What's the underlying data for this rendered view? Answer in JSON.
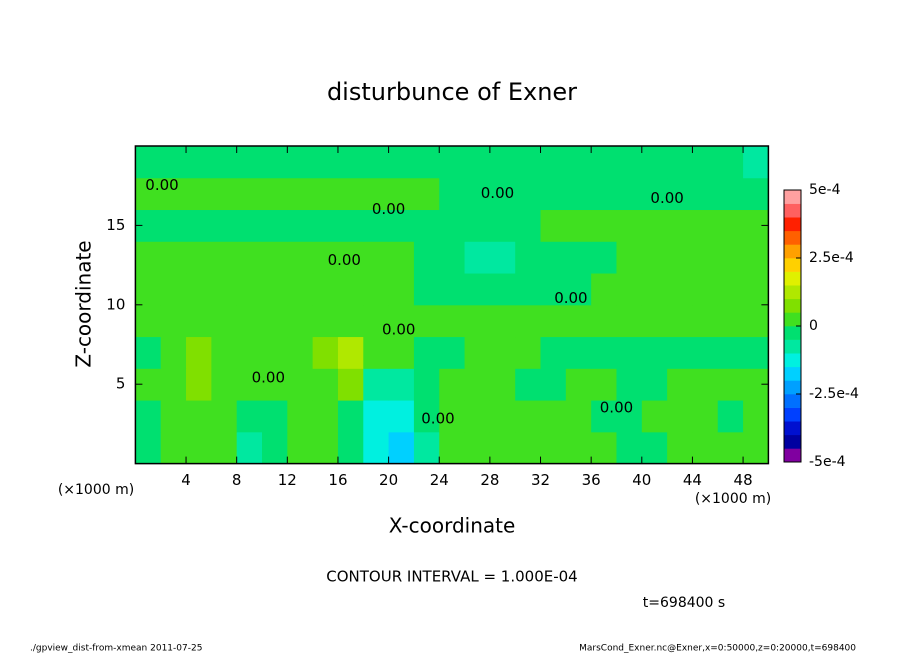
{
  "chart_data": {
    "type": "contour",
    "title": "disturbunce of Exner",
    "x_label": "X-coordinate",
    "y_label": "Z-coordinate",
    "x_unit_labels": [
      "(×1000 m)",
      "(×1000 m)"
    ],
    "contour_interval_text": "CONTOUR INTERVAL = 1.000E-04",
    "time_text": "t=698400 s",
    "footer_left": "./gpview_dist-from-xmean  2011-07-25",
    "footer_right": "MarsCond_Exner.nc@Exner,x=0:50000,z=0:20000,t=698400",
    "xlim": [
      0,
      50
    ],
    "ylim": [
      0,
      20
    ],
    "xticks": [
      4,
      8,
      12,
      16,
      20,
      24,
      28,
      32,
      36,
      40,
      44,
      48
    ],
    "yticks": [
      5,
      10,
      15
    ],
    "x": [
      1,
      3,
      5,
      7,
      9,
      11,
      13,
      15,
      17,
      19,
      21,
      23,
      25,
      27,
      29,
      31,
      33,
      35,
      37,
      39,
      41,
      43,
      45,
      47,
      49
    ],
    "z": [
      1,
      3,
      5,
      7,
      9,
      11,
      13,
      15,
      17,
      19
    ],
    "values": [
      [
        -3e-05,
        3e-05,
        3e-05,
        3e-05,
        -7e-05,
        -3e-05,
        3e-05,
        3e-05,
        -3e-05,
        -0.00015,
        -0.0002,
        -7e-05,
        3e-05,
        3e-05,
        3e-05,
        3e-05,
        3e-05,
        3e-05,
        3e-05,
        -3e-05,
        -3e-05,
        3e-05,
        3e-05,
        3e-05,
        3e-05
      ],
      [
        -3e-05,
        3e-05,
        3e-05,
        3e-05,
        -3e-05,
        -3e-05,
        3e-05,
        3e-05,
        -3e-05,
        -0.00015,
        -0.00015,
        -3e-05,
        3e-05,
        3e-05,
        3e-05,
        3e-05,
        3e-05,
        3e-05,
        -3e-05,
        -3e-05,
        3e-05,
        3e-05,
        3e-05,
        -3e-05,
        3e-05
      ],
      [
        3e-05,
        3e-05,
        7e-05,
        3e-05,
        3e-05,
        3e-05,
        3e-05,
        3e-05,
        7e-05,
        -7e-05,
        -7e-05,
        -3e-05,
        3e-05,
        3e-05,
        3e-05,
        -3e-05,
        -3e-05,
        3e-05,
        3e-05,
        -3e-05,
        -3e-05,
        3e-05,
        3e-05,
        3e-05,
        3e-05
      ],
      [
        -3e-05,
        3e-05,
        7e-05,
        3e-05,
        3e-05,
        3e-05,
        3e-05,
        7e-05,
        0.00012,
        3e-05,
        3e-05,
        -3e-05,
        -3e-05,
        3e-05,
        3e-05,
        3e-05,
        -3e-05,
        -3e-05,
        -3e-05,
        -3e-05,
        -3e-05,
        -3e-05,
        -3e-05,
        -3e-05,
        -3e-05
      ],
      [
        3e-05,
        3e-05,
        3e-05,
        3e-05,
        3e-05,
        3e-05,
        3e-05,
        3e-05,
        3e-05,
        3e-05,
        3e-05,
        3e-05,
        3e-05,
        3e-05,
        3e-05,
        3e-05,
        3e-05,
        3e-05,
        3e-05,
        3e-05,
        3e-05,
        3e-05,
        3e-05,
        3e-05,
        3e-05
      ],
      [
        3e-05,
        3e-05,
        3e-05,
        3e-05,
        3e-05,
        3e-05,
        3e-05,
        3e-05,
        3e-05,
        3e-05,
        3e-05,
        -3e-05,
        -3e-05,
        -3e-05,
        -3e-05,
        -3e-05,
        -3e-05,
        -3e-05,
        3e-05,
        3e-05,
        3e-05,
        3e-05,
        3e-05,
        3e-05,
        3e-05
      ],
      [
        3e-05,
        3e-05,
        3e-05,
        3e-05,
        3e-05,
        3e-05,
        3e-05,
        3e-05,
        3e-05,
        3e-05,
        3e-05,
        -3e-05,
        -3e-05,
        -7e-05,
        -7e-05,
        -3e-05,
        -3e-05,
        -3e-05,
        -3e-05,
        3e-05,
        3e-05,
        3e-05,
        3e-05,
        3e-05,
        3e-05
      ],
      [
        -3e-05,
        -3e-05,
        -3e-05,
        -3e-05,
        -3e-05,
        -3e-05,
        -3e-05,
        -3e-05,
        -3e-05,
        -3e-05,
        -3e-05,
        -3e-05,
        -3e-05,
        -3e-05,
        -3e-05,
        -3e-05,
        3e-05,
        3e-05,
        3e-05,
        3e-05,
        3e-05,
        3e-05,
        3e-05,
        3e-05,
        3e-05
      ],
      [
        3e-05,
        3e-05,
        3e-05,
        3e-05,
        3e-05,
        3e-05,
        3e-05,
        3e-05,
        3e-05,
        3e-05,
        3e-05,
        3e-05,
        -3e-05,
        -3e-05,
        -3e-05,
        -3e-05,
        -3e-05,
        -3e-05,
        -3e-05,
        -3e-05,
        -3e-05,
        -3e-05,
        -3e-05,
        -3e-05,
        -3e-05
      ],
      [
        -3e-05,
        -3e-05,
        -3e-05,
        -3e-05,
        -3e-05,
        -3e-05,
        -3e-05,
        -3e-05,
        -3e-05,
        -3e-05,
        -3e-05,
        -3e-05,
        -3e-05,
        -3e-05,
        -3e-05,
        -3e-05,
        -3e-05,
        -3e-05,
        -3e-05,
        -3e-05,
        -3e-05,
        -3e-05,
        -3e-05,
        -3e-05,
        -7e-05
      ]
    ],
    "levels": [
      -0.0005,
      -0.00045,
      -0.0004,
      -0.00035,
      -0.0003,
      -0.00025,
      -0.0002,
      -0.00015,
      -0.0001,
      -5e-05,
      0,
      5e-05,
      0.0001,
      0.00015,
      0.0002,
      0.00025,
      0.0003,
      0.00035,
      0.0004,
      0.00045,
      0.0005
    ],
    "colors": [
      "#8000a0",
      "#0000a0",
      "#0010d0",
      "#0040ff",
      "#0070ff",
      "#00a0ff",
      "#00d0ff",
      "#00f0e0",
      "#00e8a0",
      "#00e070",
      "#40e020",
      "#80e000",
      "#b0e800",
      "#e0f000",
      "#ffd000",
      "#ffa000",
      "#ff6000",
      "#ff2000",
      "#ff6060",
      "#ffa0a0"
    ],
    "cbticks": [
      {
        "value": -0.0005,
        "label": "-5e-4"
      },
      {
        "value": -0.00025,
        "label": "-2.5e-4"
      },
      0,
      {
        "value": 0.00025,
        "label": "2.5e-4"
      },
      {
        "value": 0.0005,
        "label": "5e-4"
      }
    ],
    "annotations": [
      {
        "text": "0.00",
        "x": 2.1,
        "z": 17.5
      },
      {
        "text": "0.00",
        "x": 20,
        "z": 16
      },
      {
        "text": "0.00",
        "x": 28.6,
        "z": 17
      },
      {
        "text": "0.00",
        "x": 42,
        "z": 16.7
      },
      {
        "text": "0.00",
        "x": 16.5,
        "z": 12.8
      },
      {
        "text": "0.00",
        "x": 34.4,
        "z": 10.4
      },
      {
        "text": "0.00",
        "x": 20.8,
        "z": 8.4
      },
      {
        "text": "0.00",
        "x": 23.9,
        "z": 2.8
      },
      {
        "text": "0.00",
        "x": 10.5,
        "z": 5.4
      },
      {
        "text": "0.00",
        "x": 38,
        "z": 3.5
      }
    ]
  }
}
